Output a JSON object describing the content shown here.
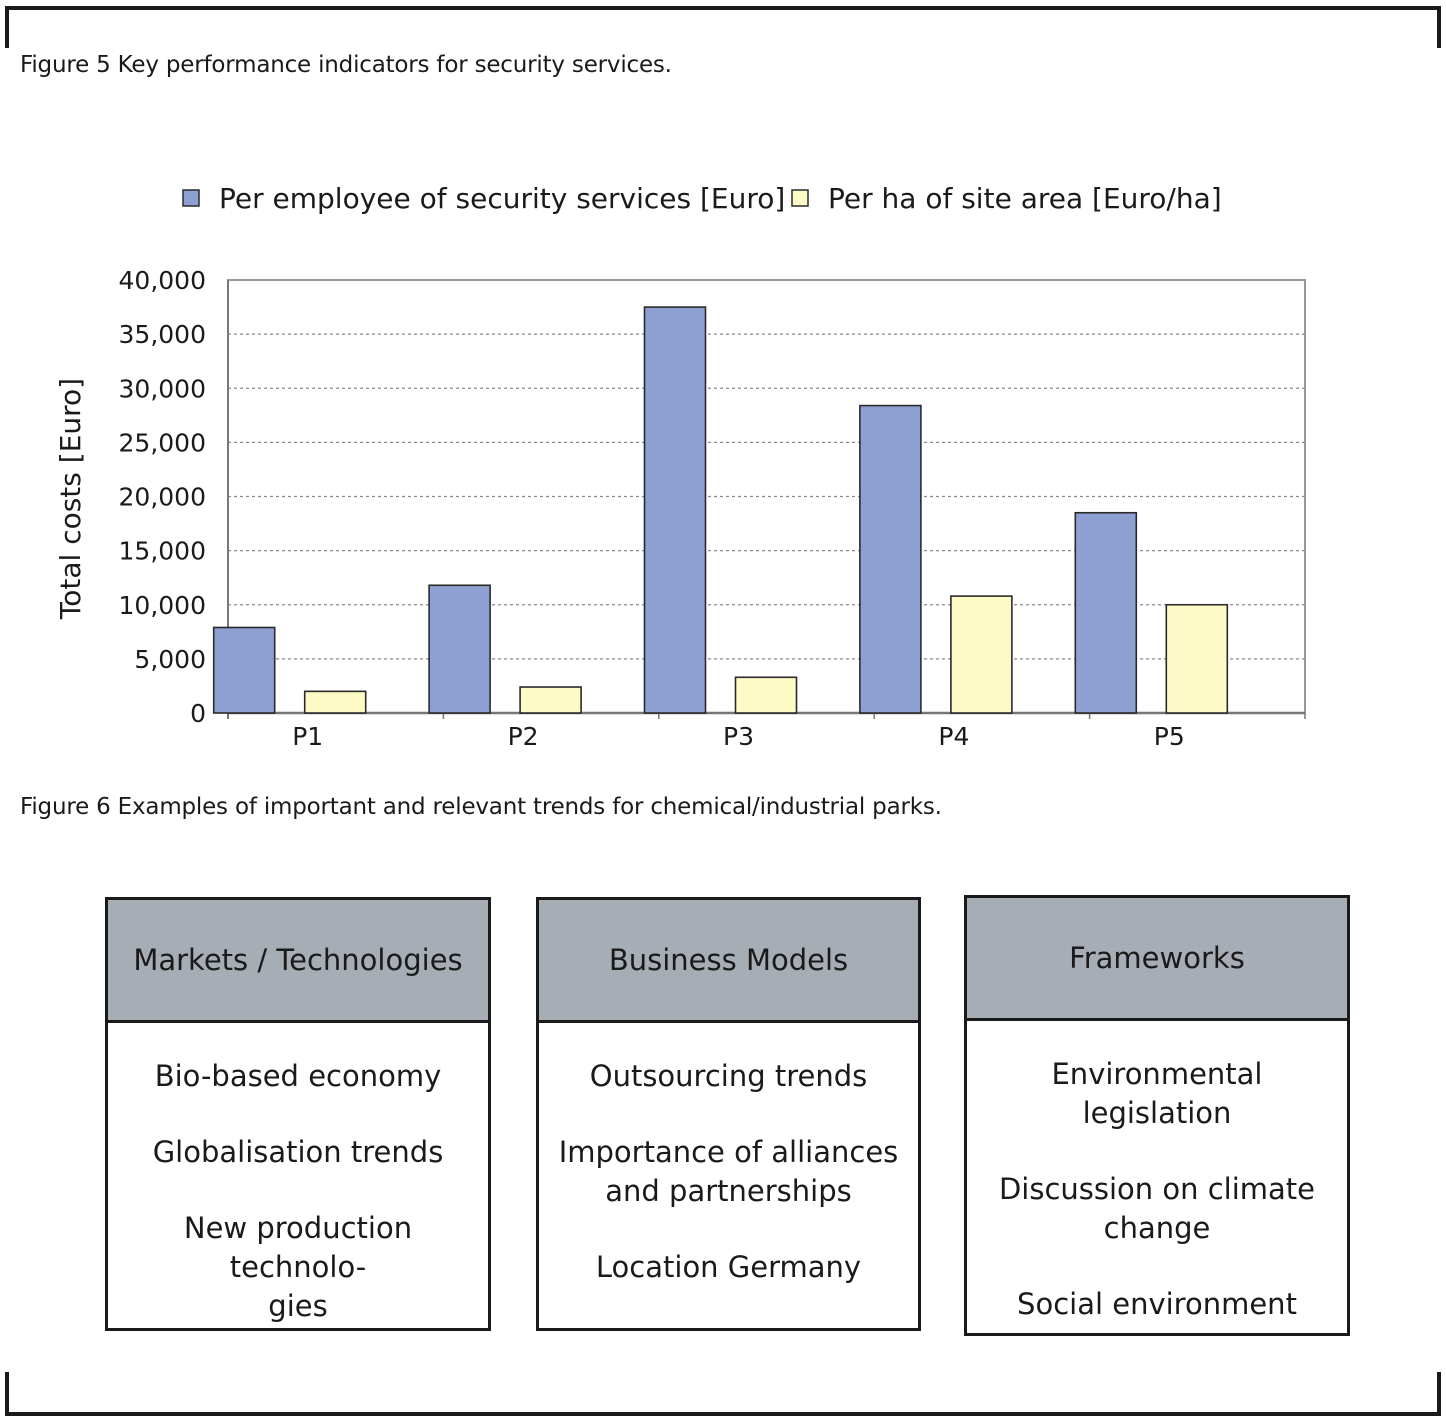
{
  "captions": {
    "figure5": "Figure 5 Key performance indicators for security services.",
    "figure6": "Figure 6 Examples of important and relevant trends for chemical/industrial parks."
  },
  "colors": {
    "series1": "#8da0d1",
    "series2": "#fdfac6",
    "box_header": "#a7adb5",
    "grid": "#8a8a8a"
  },
  "chart_data": {
    "type": "bar",
    "title": "",
    "categories": [
      "P1",
      "P2",
      "P3",
      "P4",
      "P5"
    ],
    "series": [
      {
        "name": "Per employee of security services [Euro]",
        "values": [
          7900,
          11800,
          37500,
          28400,
          18500
        ],
        "color": "#8da0d1"
      },
      {
        "name": "Per ha of site area [Euro/ha]",
        "values": [
          2000,
          2400,
          3300,
          10800,
          10000
        ],
        "color": "#fdfac6"
      }
    ],
    "ylabel": "Total costs [Euro]",
    "xlabel": "",
    "ylim": [
      0,
      40000
    ],
    "yticks": [
      0,
      5000,
      10000,
      15000,
      20000,
      25000,
      30000,
      35000,
      40000
    ],
    "ytick_labels": [
      "0",
      "5,000",
      "10,000",
      "15,000",
      "20,000",
      "25,000",
      "30,000",
      "35,000",
      "40,000"
    ],
    "grid": "horizontal dashed",
    "legend": "top"
  },
  "trend_boxes": [
    {
      "title": "Markets / Technologies",
      "items": [
        "Bio-based economy",
        "Globalisation trends",
        "New production technolo-\ngies"
      ]
    },
    {
      "title": "Business Models",
      "items": [
        "Outsourcing trends",
        "Importance of alliances\nand partnerships",
        "Location Germany"
      ]
    },
    {
      "title": "Frameworks",
      "items": [
        "Environmental legislation",
        "Discussion on climate\nchange",
        "Social environment"
      ]
    }
  ]
}
